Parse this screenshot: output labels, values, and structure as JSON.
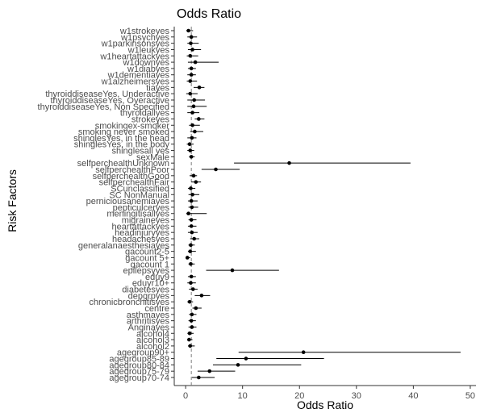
{
  "chart_data": {
    "type": "scatter",
    "title": "Odds Ratio",
    "xlabel": "Odds Ratio",
    "ylabel": "Risk Factors",
    "xlim": [
      -2,
      51
    ],
    "xticks": [
      0,
      10,
      20,
      30,
      40,
      50
    ],
    "reference_line": 1,
    "grid": false,
    "legend": "none",
    "point_color": "#000000",
    "ref_line_color": "#808080",
    "categories": [
      "w1strokeyes",
      "w1psychyes",
      "w1parkinsonsyes",
      "w1leukyes",
      "w1heartattackyes",
      "w1downyes",
      "w1diabyes",
      "w1dementiayes",
      "w1alzheimersyes",
      "tiayes",
      "thyroiddiseaseYes, Underactive",
      "thyroiddiseaseYes, Overactive",
      "thyroiddiseaseYes, Non Specified",
      "thyroidallyes",
      "strokeyes",
      "smokingex-smoker",
      "smoking never smoked",
      "shinglesYes, in the head",
      "shinglesYes, in the body",
      "shinglesall yes",
      "sexMale",
      "selfperchealthUnknown",
      "selfperchealthPoor",
      "selfperchealthGood",
      "selfperchealthFair",
      "SCunclassified",
      "SC NonManual",
      "perniciousanemiayes",
      "pepticulceryes",
      "meningitisallyes",
      "migraineyes",
      "heartattackyes",
      "headinjuryyes",
      "headachesyes",
      "generalanaesthesiayes",
      "gacount2-5",
      "gacount 5+",
      "gacount 1",
      "epilepsyyes",
      "eduy9",
      "eduyr10+",
      "diabetesyes",
      "depgrpyes",
      "chronicbronchitisyes",
      "centre",
      "asthmayes",
      "arthritisyes",
      "Anginayes",
      "alcohol4",
      "alcohol3",
      "alcohol2",
      "agegroup90+",
      "agegroup85-89",
      "agegroup80-84",
      "agegroup75-79",
      "agegroup70-74"
    ],
    "series": [
      {
        "or": [
          0.5,
          1.0,
          0.9,
          1.2,
          0.8,
          1.7,
          1.0,
          1.0,
          0.8,
          2.4,
          0.8,
          1.5,
          1.4,
          1.2,
          2.3,
          1.2,
          1.6,
          1.1,
          0.7,
          0.8,
          1.0,
          18.2,
          5.3,
          1.4,
          1.8,
          0.9,
          1.2,
          1.0,
          1.1,
          0.5,
          1.0,
          1.0,
          1.1,
          1.5,
          0.9,
          0.8,
          0.3,
          0.9,
          8.2,
          1.0,
          0.9,
          1.3,
          2.8,
          0.7,
          1.8,
          1.1,
          1.0,
          1.1,
          0.7,
          0.6,
          0.8,
          20.7,
          10.6,
          9.2,
          4.2,
          2.3
        ],
        "lo": [
          0.1,
          0.3,
          0.3,
          0.4,
          0.2,
          0.4,
          0.4,
          0.3,
          0.2,
          1.4,
          0.1,
          0.3,
          0.3,
          0.3,
          1.6,
          0.6,
          0.8,
          0.3,
          0.2,
          0.3,
          0.6,
          8.5,
          2.8,
          0.7,
          1.0,
          0.4,
          0.5,
          0.4,
          0.5,
          0.1,
          0.5,
          0.4,
          0.4,
          0.8,
          0.5,
          0.4,
          0.1,
          0.5,
          3.6,
          0.4,
          0.3,
          0.6,
          1.6,
          0.3,
          1.2,
          0.6,
          0.5,
          0.5,
          0.3,
          0.3,
          0.4,
          9.3,
          5.4,
          4.8,
          2.1,
          1.1
        ],
        "hi": [
          1.3,
          2.0,
          2.3,
          2.7,
          2.2,
          5.8,
          1.8,
          1.8,
          2.0,
          3.3,
          2.1,
          3.4,
          3.7,
          2.4,
          3.3,
          2.5,
          3.1,
          1.9,
          1.4,
          1.5,
          1.6,
          39.5,
          9.5,
          2.0,
          2.7,
          1.7,
          2.4,
          2.1,
          2.2,
          3.7,
          1.9,
          1.9,
          2.1,
          2.4,
          1.6,
          1.8,
          0.8,
          1.6,
          16.4,
          1.8,
          1.8,
          2.1,
          4.3,
          1.3,
          2.8,
          1.9,
          1.8,
          1.9,
          1.4,
          1.2,
          1.6,
          48.3,
          24.3,
          20.3,
          8.7,
          5.1
        ]
      }
    ]
  }
}
